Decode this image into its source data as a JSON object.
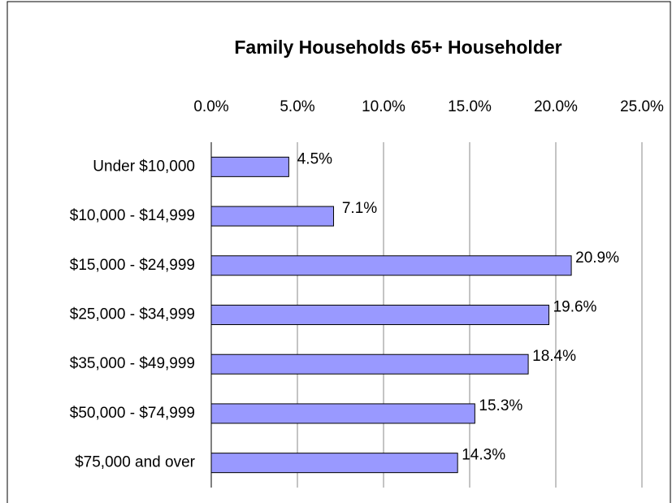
{
  "chart_data": {
    "type": "bar",
    "orientation": "horizontal",
    "title": "Family Households 65+ Householder",
    "categories": [
      "Under $10,000",
      "$10,000 - $14,999",
      "$15,000 - $24,999",
      "$25,000 - $34,999",
      "$35,000 - $49,999",
      "$50,000 - $74,999",
      "$75,000 and over"
    ],
    "values": [
      4.5,
      7.1,
      20.9,
      19.6,
      18.4,
      15.3,
      14.3
    ],
    "value_labels": [
      "4.5%",
      "7.1%",
      "20.9%",
      "19.6%",
      "18.4%",
      "15.3%",
      "14.3%"
    ],
    "color": "#9999ff",
    "xlim": [
      0,
      25
    ],
    "xticks": [
      {
        "value": 0,
        "label": "0.0%"
      },
      {
        "value": 5,
        "label": "5.0%"
      },
      {
        "value": 10,
        "label": "10.0%"
      },
      {
        "value": 15,
        "label": "15.0%"
      },
      {
        "value": 20,
        "label": "20.0%"
      },
      {
        "value": 25,
        "label": "25.0%"
      }
    ],
    "grid": true
  }
}
